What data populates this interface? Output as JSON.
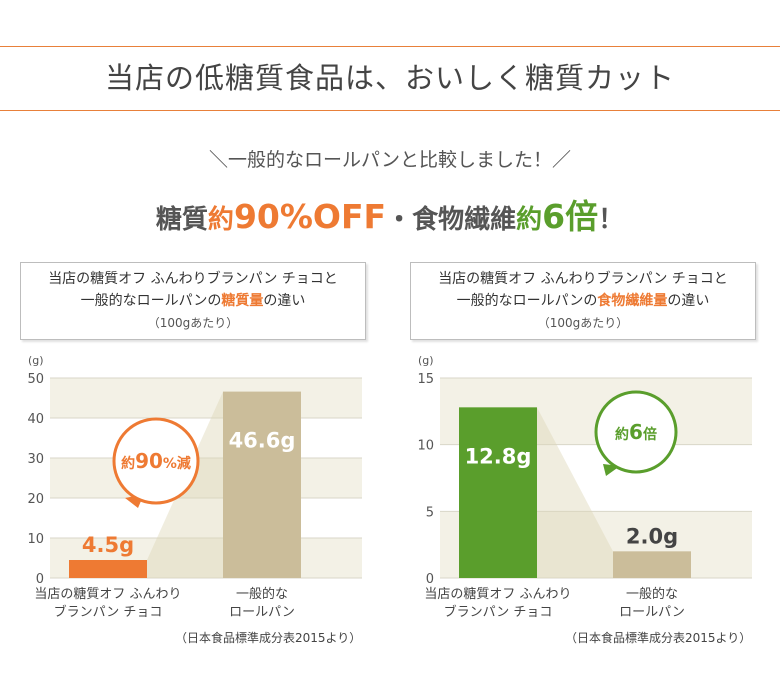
{
  "header": {
    "title": "当店の低糖質食品は、おいしく糖質カット",
    "subtitle": "＼一般的なロールパンと比較しました！／",
    "headline": {
      "part1": "糖質",
      "part2": "約",
      "part3": "90%OFF",
      "part4": "・食物繊維",
      "part5": "約",
      "part6": "6倍",
      "part7": "！"
    }
  },
  "colors": {
    "accent_orange": "#ee7a33",
    "accent_green": "#5a9e2c",
    "bar_beige": "#cbbd9a",
    "band": "#f3f1e6"
  },
  "panels": [
    {
      "box_line1": "当店の糖質オフ ふんわりブランパン チョコと",
      "box_line2_pre": "一般的なロールパンの",
      "box_line2_hl": "糖質量",
      "box_line2_post": "の違い",
      "box_line3": "（100gあたり）",
      "callout": {
        "pre": "約",
        "num": "90",
        "post": "%減"
      },
      "source": "（日本食品標準成分表2015より）"
    },
    {
      "box_line1": "当店の糖質オフ ふんわりブランパン チョコと",
      "box_line2_pre": "一般的なロールパンの",
      "box_line2_hl": "食物繊維量",
      "box_line2_post": "の違い",
      "box_line3": "（100gあたり）",
      "callout": {
        "pre": "約",
        "num": "6",
        "post": "倍"
      },
      "source": "（日本食品標準成分表2015より）"
    }
  ],
  "chart_data": [
    {
      "type": "bar",
      "unit_label": "(g)",
      "categories": [
        [
          "当店の糖質オフ ふんわり",
          "ブランパン チョコ"
        ],
        [
          "一般的な",
          "ロールパン"
        ]
      ],
      "values": [
        4.5,
        46.6
      ],
      "value_labels": [
        "4.5g",
        "46.6g"
      ],
      "bar_colors": [
        "#ee7a33",
        "#cbbd9a"
      ],
      "label_colors": [
        "#ee7a33",
        "#ffffff"
      ],
      "ylim": [
        0,
        50
      ],
      "yticks": [
        0,
        10,
        20,
        30,
        40,
        50
      ]
    },
    {
      "type": "bar",
      "unit_label": "(g)",
      "categories": [
        [
          "当店の糖質オフ ふんわり",
          "ブランパン チョコ"
        ],
        [
          "一般的な",
          "ロールパン"
        ]
      ],
      "values": [
        12.8,
        2.0
      ],
      "value_labels": [
        "12.8g",
        "2.0g"
      ],
      "bar_colors": [
        "#5a9e2c",
        "#cbbd9a"
      ],
      "label_colors": [
        "#ffffff",
        "#444444"
      ],
      "ylim": [
        0,
        15
      ],
      "yticks": [
        0,
        5,
        10,
        15
      ]
    }
  ]
}
